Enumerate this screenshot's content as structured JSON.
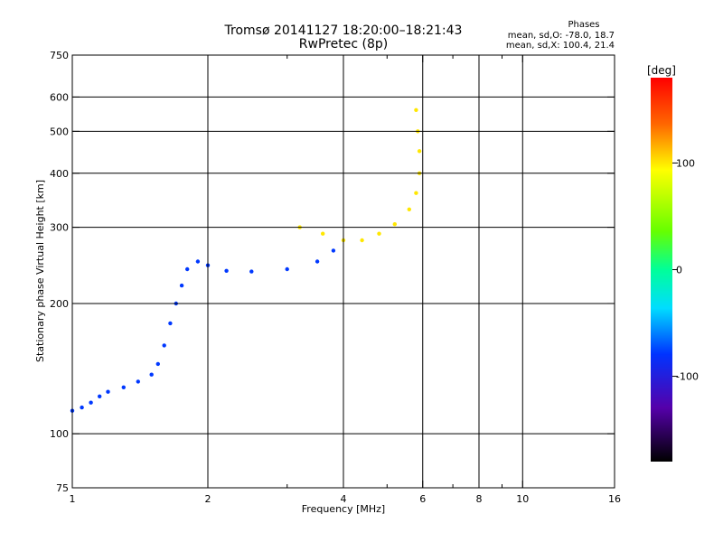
{
  "chart_data": {
    "type": "scatter",
    "title": "Tromsø 20141127 18:20:00–18:21:43",
    "subtitle": "RwPretec (8p)",
    "xlabel": "Frequency [MHz]",
    "ylabel": "Stationary phase Virtual Height [km]",
    "x_scale": "log",
    "y_scale": "log",
    "xlim": [
      1,
      16
    ],
    "ylim": [
      75,
      750
    ],
    "x_ticks": [
      1,
      2,
      4,
      6,
      8,
      10,
      16
    ],
    "x_tick_labels": [
      "1",
      "2",
      "4",
      "6",
      "8",
      "10",
      "16"
    ],
    "x_grid": [
      2,
      4,
      6,
      8,
      10
    ],
    "x_minor": [
      3,
      5,
      7,
      9
    ],
    "y_ticks": [
      75,
      100,
      200,
      300,
      400,
      500,
      600,
      750
    ],
    "y_tick_labels": [
      "75",
      "100",
      "200",
      "300",
      "400",
      "500",
      "600",
      "750"
    ],
    "y_grid": [
      100,
      200,
      300,
      400,
      500,
      600
    ],
    "legend": {
      "title": "Phases",
      "lines": [
        "mean, sd,O: -78.0, 18.7",
        "mean, sd,X: 100.4, 21.4"
      ],
      "placement": "top-right"
    },
    "colorbar": {
      "label": "[deg]",
      "range": [
        -180,
        180
      ],
      "ticks": [
        100,
        0,
        -100
      ],
      "tick_labels": [
        "100",
        "0",
        "-100"
      ],
      "colormap": "rainbow"
    },
    "series": [
      {
        "name": "O",
        "color_value": -78.0,
        "points": [
          [
            1.0,
            113
          ],
          [
            1.05,
            115
          ],
          [
            1.1,
            118
          ],
          [
            1.15,
            122
          ],
          [
            1.2,
            125
          ],
          [
            1.3,
            128
          ],
          [
            1.4,
            132
          ],
          [
            1.5,
            137
          ],
          [
            1.55,
            145
          ],
          [
            1.6,
            160
          ],
          [
            1.65,
            180
          ],
          [
            1.7,
            200
          ],
          [
            1.75,
            220
          ],
          [
            1.8,
            240
          ],
          [
            1.9,
            250
          ],
          [
            2.0,
            245
          ],
          [
            2.2,
            238
          ],
          [
            2.5,
            237
          ],
          [
            3.0,
            240
          ],
          [
            3.5,
            250
          ],
          [
            3.8,
            265
          ]
        ]
      },
      {
        "name": "X",
        "color_value": 100.4,
        "points": [
          [
            3.2,
            300
          ],
          [
            3.6,
            290
          ],
          [
            4.0,
            280
          ],
          [
            4.4,
            280
          ],
          [
            4.8,
            290
          ],
          [
            5.2,
            305
          ],
          [
            5.6,
            330
          ],
          [
            5.8,
            360
          ],
          [
            5.9,
            400
          ],
          [
            5.9,
            450
          ],
          [
            5.85,
            500
          ],
          [
            5.8,
            560
          ]
        ]
      }
    ]
  }
}
